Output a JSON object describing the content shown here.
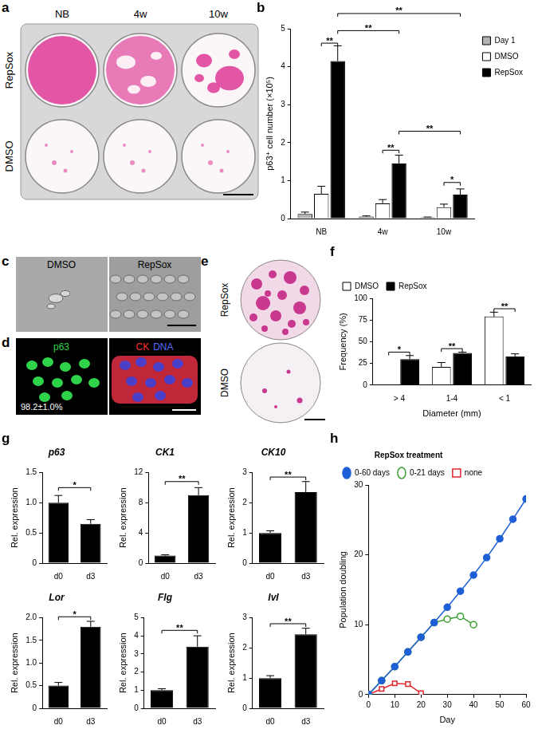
{
  "images": {
    "a": {
      "panel": "a",
      "columns": [
        "NB",
        "4w",
        "10w"
      ],
      "rows": [
        "RepSox",
        "DMSO"
      ]
    },
    "c": {
      "panel": "c",
      "labels": [
        "DMSO",
        "RepSox"
      ]
    },
    "d": {
      "panel": "d",
      "labels": [
        "p63",
        "CK",
        "DNA"
      ],
      "annotation": "98.2±1.0%"
    },
    "e": {
      "panel": "e",
      "labels": [
        "RepSox",
        "DMSO"
      ]
    }
  },
  "chart_data": [
    {
      "panel": "b",
      "type": "bar",
      "y_label": "p63⁺ cell number (×10⁵)",
      "categories": [
        "NB",
        "4w",
        "10w"
      ],
      "series": [
        {
          "name": "Day 1",
          "color": "#b3b3b3",
          "values": [
            0.12,
            0.05,
            0.03
          ],
          "errors": [
            0.05,
            0.02,
            0.01
          ]
        },
        {
          "name": "DMSO",
          "color": "#ffffff",
          "values": [
            0.65,
            0.4,
            0.3
          ],
          "errors": [
            0.2,
            0.1,
            0.08
          ]
        },
        {
          "name": "RepSox",
          "color": "#000000",
          "values": [
            4.15,
            1.45,
            0.63
          ],
          "errors": [
            0.4,
            0.22,
            0.15
          ]
        }
      ],
      "ylim": [
        0,
        5
      ],
      "yticks": [
        0,
        1,
        2,
        3,
        4,
        5
      ],
      "legend": "top-right",
      "annotations": [
        {
          "text": "**",
          "from": [
            0,
            1
          ],
          "to": [
            0,
            2
          ],
          "y": 4.62
        },
        {
          "text": "**",
          "from": [
            0,
            2
          ],
          "to": [
            1,
            2
          ],
          "y": 4.95
        },
        {
          "text": "**",
          "from": [
            0,
            2
          ],
          "to": [
            2,
            2
          ],
          "y": 5.4
        },
        {
          "text": "**",
          "from": [
            1,
            1
          ],
          "to": [
            1,
            2
          ],
          "y": 1.8
        },
        {
          "text": "**",
          "from": [
            1,
            2
          ],
          "to": [
            2,
            2
          ],
          "y": 2.3
        },
        {
          "text": "*",
          "from": [
            2,
            1
          ],
          "to": [
            2,
            2
          ],
          "y": 0.95
        }
      ]
    },
    {
      "panel": "f",
      "type": "bar",
      "x_label": "Diameter (mm)",
      "y_label": "Frequency (%)",
      "categories": [
        "> 4",
        "1-4",
        "< 1"
      ],
      "series": [
        {
          "name": "DMSO",
          "color": "#ffffff",
          "values": [
            0,
            21,
            79
          ],
          "errors": [
            0,
            5,
            5
          ]
        },
        {
          "name": "RepSox",
          "color": "#000000",
          "values": [
            30,
            37,
            33
          ],
          "errors": [
            4,
            1,
            3
          ]
        }
      ],
      "ylim": [
        0,
        100
      ],
      "yticks": [
        0,
        25,
        50,
        75,
        100
      ],
      "legend": "top-left",
      "annotations": [
        {
          "text": "*",
          "from": [
            0,
            0
          ],
          "to": [
            0,
            1
          ],
          "y": 38
        },
        {
          "text": "**",
          "from": [
            1,
            0
          ],
          "to": [
            1,
            1
          ],
          "y": 42
        },
        {
          "text": "**",
          "from": [
            2,
            0
          ],
          "to": [
            2,
            1
          ],
          "y": 88
        }
      ]
    },
    {
      "panel": "g",
      "type": "bar",
      "title": "p63",
      "y_label": "Rel. expression",
      "categories": [
        "d0",
        "d3"
      ],
      "color": "#000000",
      "values": [
        1.0,
        0.65
      ],
      "errors": [
        0.12,
        0.07
      ],
      "ylim": [
        0,
        1.5
      ],
      "yticks": [
        0,
        0.5,
        {
          "value": 1,
          "label": "1.0"
        },
        1.5
      ],
      "annotations": [
        {
          "text": "*",
          "from": [
            0,
            0
          ],
          "to": [
            1,
            0
          ],
          "y": 1.25
        }
      ]
    },
    {
      "type": "bar",
      "title": "CK1",
      "y_label": "Rel. expression",
      "categories": [
        "d0",
        "d3"
      ],
      "color": "#000000",
      "values": [
        1.0,
        9.0
      ],
      "errors": [
        0.1,
        1.0
      ],
      "ylim": [
        0,
        12
      ],
      "yticks": [
        0,
        4,
        8,
        12
      ],
      "annotations": [
        {
          "text": "**",
          "from": [
            0,
            0
          ],
          "to": [
            1,
            0
          ],
          "y": 10.8
        }
      ]
    },
    {
      "type": "bar",
      "title": "CK10",
      "y_label": "Rel. expression",
      "categories": [
        "d0",
        "d3"
      ],
      "color": "#000000",
      "values": [
        1.0,
        2.35
      ],
      "errors": [
        0.07,
        0.35
      ],
      "ylim": [
        0,
        3
      ],
      "yticks": [
        0,
        1,
        2,
        3
      ],
      "annotations": [
        {
          "text": "**",
          "from": [
            0,
            0
          ],
          "to": [
            1,
            0
          ],
          "y": 2.85
        }
      ]
    },
    {
      "type": "bar",
      "title": "Lor",
      "y_label": "Rel. expression",
      "categories": [
        "d0",
        "d3"
      ],
      "color": "#000000",
      "values": [
        0.5,
        1.8
      ],
      "errors": [
        0.07,
        0.12
      ],
      "ylim": [
        0,
        2
      ],
      "yticks": [
        0,
        0.5,
        {
          "value": 1,
          "label": "1.0"
        },
        1.5,
        {
          "value": 2,
          "label": "2.0"
        }
      ],
      "annotations": [
        {
          "text": "*",
          "from": [
            0,
            0
          ],
          "to": [
            1,
            0
          ],
          "y": 2.02
        }
      ]
    },
    {
      "type": "bar",
      "title": "Flg",
      "y_label": "Rel. expression",
      "categories": [
        "d0",
        "d3"
      ],
      "color": "#000000",
      "values": [
        1.0,
        3.4
      ],
      "errors": [
        0.08,
        0.6
      ],
      "ylim": [
        0,
        5
      ],
      "yticks": [
        0,
        1,
        2,
        3,
        4,
        5
      ],
      "annotations": [
        {
          "text": "**",
          "from": [
            0,
            0
          ],
          "to": [
            1,
            0
          ],
          "y": 4.3
        }
      ]
    },
    {
      "type": "bar",
      "title": "Ivl",
      "y_label": "Rel. expression",
      "categories": [
        "d0",
        "d3"
      ],
      "color": "#000000",
      "values": [
        1.0,
        2.45
      ],
      "errors": [
        0.08,
        0.2
      ],
      "ylim": [
        0,
        3
      ],
      "yticks": [
        0,
        1,
        2,
        3
      ],
      "annotations": [
        {
          "text": "**",
          "from": [
            0,
            0
          ],
          "to": [
            1,
            0
          ],
          "y": 2.8
        }
      ]
    },
    {
      "panel": "h",
      "type": "line",
      "x_label": "Day",
      "y_label": "Population doubling",
      "xlim": [
        0,
        60
      ],
      "xticks": [
        0,
        10,
        20,
        30,
        40,
        50,
        60
      ],
      "ylim": [
        0,
        30
      ],
      "yticks": [
        0,
        10,
        20,
        30
      ],
      "legend": "top-left",
      "legend_title": "RepSox treatment",
      "series": [
        {
          "name": "0-60 days",
          "color": "#1f5fd6",
          "marker": "circle",
          "x": [
            0,
            5,
            10,
            15,
            20,
            25,
            30,
            35,
            40,
            45,
            50,
            55,
            60
          ],
          "values": [
            0,
            2,
            4,
            6.1,
            8.2,
            10.3,
            12.5,
            14.8,
            17.1,
            19.6,
            22.3,
            25.1,
            28
          ]
        },
        {
          "name": "0-21 days",
          "color": "#3aa02f",
          "marker": "circle-open",
          "x": [
            0,
            5,
            10,
            15,
            20,
            25,
            30,
            35,
            40
          ],
          "values": [
            0,
            2,
            4,
            6.1,
            8.2,
            10.3,
            10.8,
            11.2,
            10
          ]
        },
        {
          "name": "none",
          "color": "#e0262a",
          "marker": "square-open",
          "x": [
            0,
            5,
            10,
            15,
            20
          ],
          "values": [
            0,
            0.8,
            1.6,
            1.5,
            0.2
          ]
        }
      ]
    }
  ]
}
